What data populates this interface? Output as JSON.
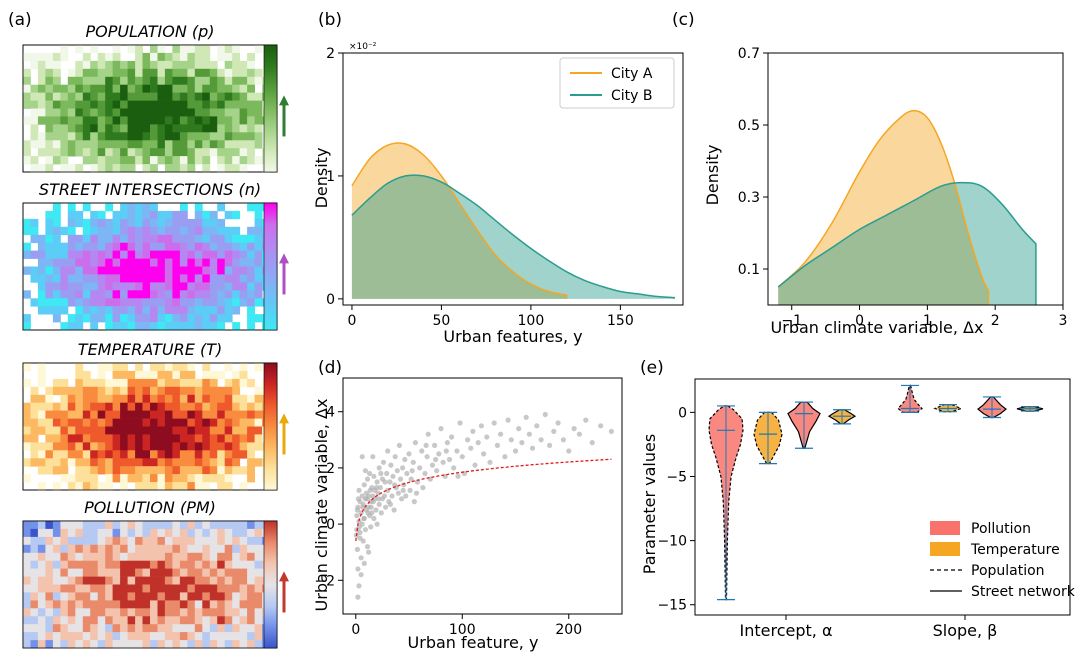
{
  "panel_labels": [
    "(a)",
    "(b)",
    "(c)",
    "(d)",
    "(e)"
  ],
  "colors": {
    "city_a": "#f5a623",
    "city_a_fill": "#fbd9a6",
    "city_b": "#2a9d8f",
    "city_b_fill": "#9fd3cc",
    "overlap_fill": "#c8c9a0",
    "pollution": "#f8736b",
    "temperature": "#f5a623",
    "scatter": "#b0b0b0",
    "fit": "#e31a1c",
    "whisker": "#1f77b4"
  },
  "chart_data": [
    {
      "id": "a",
      "type": "heatmap",
      "maps": [
        {
          "title": "POPULATION (p)",
          "palette": "greens",
          "arrow_color": "#2e7d32"
        },
        {
          "title": "STREET INTERSECTIONS (n)",
          "palette": "cool",
          "arrow_color": "#b04fc4"
        },
        {
          "title": "TEMPERATURE (T)",
          "palette": "ylorrd",
          "arrow_color": "#e8a90c"
        },
        {
          "title": "POLLUTION (PM)",
          "palette": "coolwarm",
          "arrow_color": "#c0392b"
        }
      ]
    },
    {
      "id": "b",
      "type": "area",
      "xlabel": "Urban features, y",
      "ylabel": "Density",
      "y_scale_note": "×10⁻²",
      "xlim": [
        -5,
        185
      ],
      "ylim": [
        -0.05,
        2.0
      ],
      "x_ticks": [
        "0",
        "50",
        "100",
        "150"
      ],
      "x_tick_values": [
        0,
        50,
        100,
        150
      ],
      "y_ticks": [
        "0",
        "1",
        "2"
      ],
      "y_tick_values": [
        0,
        1,
        2
      ],
      "legend": [
        "City A",
        "City B"
      ],
      "series": [
        {
          "name": "City A",
          "x": [
            0,
            10,
            20,
            30,
            40,
            50,
            60,
            70,
            80,
            90,
            100,
            110,
            120
          ],
          "y": [
            0.92,
            1.14,
            1.25,
            1.26,
            1.17,
            1.0,
            0.78,
            0.56,
            0.36,
            0.22,
            0.12,
            0.06,
            0.03
          ]
        },
        {
          "name": "City B",
          "x": [
            0,
            10,
            20,
            30,
            40,
            50,
            60,
            70,
            80,
            90,
            100,
            110,
            120,
            130,
            140,
            150,
            160,
            170,
            180
          ],
          "y": [
            0.68,
            0.82,
            0.94,
            1.0,
            1.0,
            0.95,
            0.86,
            0.76,
            0.64,
            0.52,
            0.41,
            0.31,
            0.22,
            0.15,
            0.1,
            0.06,
            0.04,
            0.02,
            0.01
          ]
        }
      ]
    },
    {
      "id": "c",
      "type": "area",
      "xlabel": "Urban climate variable, Δx",
      "ylabel": "Density",
      "xlim": [
        -1.35,
        3.0
      ],
      "ylim": [
        0.0,
        0.7
      ],
      "x_ticks": [
        "−1",
        "0",
        "1",
        "2",
        "3"
      ],
      "x_tick_values": [
        -1,
        0,
        1,
        2,
        3
      ],
      "y_ticks": [
        "0.1",
        "0.3",
        "0.5",
        "0.7"
      ],
      "y_tick_values": [
        0.1,
        0.3,
        0.5,
        0.7
      ],
      "series": [
        {
          "name": "City A",
          "x": [
            -1.2,
            -0.8,
            -0.4,
            0.0,
            0.3,
            0.6,
            0.8,
            1.0,
            1.2,
            1.4,
            1.6,
            1.8,
            1.9
          ],
          "y": [
            0.05,
            0.12,
            0.23,
            0.37,
            0.46,
            0.52,
            0.54,
            0.52,
            0.45,
            0.34,
            0.2,
            0.08,
            0.04
          ]
        },
        {
          "name": "City B",
          "x": [
            -1.2,
            -0.8,
            -0.4,
            0.0,
            0.4,
            0.8,
            1.2,
            1.5,
            1.8,
            2.1,
            2.4,
            2.6
          ],
          "y": [
            0.05,
            0.11,
            0.16,
            0.21,
            0.25,
            0.29,
            0.33,
            0.34,
            0.33,
            0.28,
            0.21,
            0.17
          ]
        }
      ]
    },
    {
      "id": "d",
      "type": "scatter",
      "xlabel": "Urban feature, y",
      "ylabel": "Urban climate variable, Δx",
      "xlim": [
        -12,
        250
      ],
      "ylim": [
        -3.2,
        5.2
      ],
      "x_ticks": [
        "0",
        "100",
        "200"
      ],
      "x_tick_values": [
        0,
        100,
        200
      ],
      "y_ticks": [
        "−2",
        "0",
        "2",
        "4"
      ],
      "y_tick_values": [
        -2,
        0,
        2,
        4
      ],
      "fit": {
        "form": "Δx = -0.6 + 0.53·ln(y+1)",
        "x_range": [
          0,
          240
        ]
      },
      "points": [
        [
          0.5,
          -0.4
        ],
        [
          1,
          0.3
        ],
        [
          1.5,
          -0.9
        ],
        [
          2,
          0.6
        ],
        [
          2,
          -1.6
        ],
        [
          3,
          0.1
        ],
        [
          3,
          1.2
        ],
        [
          4,
          -0.3
        ],
        [
          4,
          0.8
        ],
        [
          5,
          0.4
        ],
        [
          5,
          -1.2
        ],
        [
          6,
          1.0
        ],
        [
          6,
          0.0
        ],
        [
          7,
          0.7
        ],
        [
          7,
          -0.6
        ],
        [
          8,
          1.4
        ],
        [
          8,
          0.2
        ],
        [
          9,
          0.9
        ],
        [
          9,
          -0.2
        ],
        [
          10,
          1.1
        ],
        [
          10,
          0.5
        ],
        [
          11,
          -0.8
        ],
        [
          11,
          1.6
        ],
        [
          12,
          0.6
        ],
        [
          12,
          1.0
        ],
        [
          13,
          0.3
        ],
        [
          13,
          1.8
        ],
        [
          14,
          0.8
        ],
        [
          14,
          -0.1
        ],
        [
          15,
          1.3
        ],
        [
          15,
          0.4
        ],
        [
          16,
          1.0
        ],
        [
          17,
          0.2
        ],
        [
          17,
          1.7
        ],
        [
          18,
          0.9
        ],
        [
          18,
          1.2
        ],
        [
          19,
          0.5
        ],
        [
          20,
          1.5
        ],
        [
          20,
          0.0
        ],
        [
          21,
          1.1
        ],
        [
          22,
          2.0
        ],
        [
          22,
          0.7
        ],
        [
          23,
          1.3
        ],
        [
          24,
          0.4
        ],
        [
          25,
          1.6
        ],
        [
          25,
          0.9
        ],
        [
          26,
          2.2
        ],
        [
          27,
          1.0
        ],
        [
          28,
          0.6
        ],
        [
          29,
          1.8
        ],
        [
          30,
          1.2
        ],
        [
          30,
          2.6
        ],
        [
          31,
          0.8
        ],
        [
          32,
          1.5
        ],
        [
          33,
          2.1
        ],
        [
          34,
          1.0
        ],
        [
          35,
          1.7
        ],
        [
          36,
          0.5
        ],
        [
          37,
          2.4
        ],
        [
          38,
          1.3
        ],
        [
          39,
          1.9
        ],
        [
          40,
          1.1
        ],
        [
          41,
          2.8
        ],
        [
          42,
          1.6
        ],
        [
          43,
          0.9
        ],
        [
          44,
          2.0
        ],
        [
          45,
          1.4
        ],
        [
          46,
          2.3
        ],
        [
          47,
          1.0
        ],
        [
          48,
          1.8
        ],
        [
          50,
          2.5
        ],
        [
          51,
          1.2
        ],
        [
          52,
          1.6
        ],
        [
          54,
          2.2
        ],
        [
          55,
          0.8
        ],
        [
          56,
          2.9
        ],
        [
          58,
          1.5
        ],
        [
          60,
          2.0
        ],
        [
          62,
          2.6
        ],
        [
          63,
          1.3
        ],
        [
          65,
          1.8
        ],
        [
          67,
          2.4
        ],
        [
          68,
          3.2
        ],
        [
          70,
          1.6
        ],
        [
          72,
          2.1
        ],
        [
          74,
          2.8
        ],
        [
          76,
          1.9
        ],
        [
          78,
          2.5
        ],
        [
          80,
          3.4
        ],
        [
          82,
          2.2
        ],
        [
          84,
          1.7
        ],
        [
          86,
          2.9
        ],
        [
          88,
          2.3
        ],
        [
          90,
          3.1
        ],
        [
          92,
          2.0
        ],
        [
          95,
          2.6
        ],
        [
          98,
          3.6
        ],
        [
          100,
          2.4
        ],
        [
          102,
          1.8
        ],
        [
          105,
          3.0
        ],
        [
          108,
          2.7
        ],
        [
          110,
          3.3
        ],
        [
          112,
          2.1
        ],
        [
          115,
          2.9
        ],
        [
          118,
          3.5
        ],
        [
          120,
          2.5
        ],
        [
          123,
          3.1
        ],
        [
          126,
          2.2
        ],
        [
          130,
          3.6
        ],
        [
          133,
          2.8
        ],
        [
          136,
          3.2
        ],
        [
          140,
          2.4
        ],
        [
          143,
          3.7
        ],
        [
          146,
          3.0
        ],
        [
          150,
          2.6
        ],
        [
          153,
          3.4
        ],
        [
          156,
          2.9
        ],
        [
          160,
          3.8
        ],
        [
          163,
          3.2
        ],
        [
          166,
          2.7
        ],
        [
          170,
          3.5
        ],
        [
          174,
          3.0
        ],
        [
          178,
          3.9
        ],
        [
          182,
          2.8
        ],
        [
          186,
          3.3
        ],
        [
          190,
          3.6
        ],
        [
          195,
          3.0
        ],
        [
          200,
          2.6
        ],
        [
          205,
          3.4
        ],
        [
          210,
          3.2
        ],
        [
          216,
          3.7
        ],
        [
          222,
          2.9
        ],
        [
          230,
          3.5
        ],
        [
          240,
          3.3
        ],
        [
          3,
          -2.2
        ],
        [
          5,
          -1.8
        ],
        [
          2,
          -2.6
        ],
        [
          8,
          -1.4
        ],
        [
          12,
          -1.0
        ],
        [
          4,
          -0.5
        ],
        [
          6,
          2.4
        ],
        [
          9,
          1.9
        ],
        [
          16,
          2.4
        ],
        [
          1,
          -0.2
        ],
        [
          2.5,
          0.9
        ],
        [
          3.5,
          -0.1
        ],
        [
          1.5,
          0.5
        ],
        [
          6.5,
          0.6
        ],
        [
          7.5,
          0.2
        ],
        [
          10.5,
          0.9
        ],
        [
          11.5,
          0.4
        ],
        [
          13.5,
          1.2
        ],
        [
          14.5,
          0.6
        ],
        [
          16.5,
          0.8
        ],
        [
          19.5,
          1.3
        ],
        [
          21.5,
          0.9
        ],
        [
          23.5,
          1.8
        ],
        [
          27.5,
          1.5
        ],
        [
          32.5,
          0.7
        ],
        [
          36.5,
          1.4
        ],
        [
          44.5,
          1.2
        ],
        [
          53,
          1.9
        ],
        [
          57,
          1.1
        ],
        [
          66,
          2.8
        ],
        [
          75,
          2.3
        ],
        [
          85,
          2.6
        ],
        [
          96,
          1.7
        ]
      ]
    },
    {
      "id": "e",
      "type": "violin",
      "ylabel": "Parameter values",
      "ylim": [
        -15.8,
        2.6
      ],
      "y_ticks": [
        "−15",
        "−10",
        "−5",
        "0"
      ],
      "y_tick_values": [
        -15,
        -10,
        -5,
        0
      ],
      "x_groups": [
        "Intercept, α",
        "Slope, β"
      ],
      "legend": [
        "Pollution",
        "Temperature",
        "Population",
        "Street network"
      ],
      "violins": [
        {
          "group": "Intercept, α",
          "variable": "Pollution",
          "feature": "Population",
          "min": -14.6,
          "max": 0.5,
          "median": -1.4,
          "shape": [
            [
              0.5,
              0.1
            ],
            [
              0.2,
              0.45
            ],
            [
              -0.5,
              0.95
            ],
            [
              -1.4,
              1.0
            ],
            [
              -2.5,
              0.85
            ],
            [
              -3.5,
              0.6
            ],
            [
              -5.0,
              0.3
            ],
            [
              -7.0,
              0.16
            ],
            [
              -10.0,
              0.08
            ],
            [
              -14.6,
              0.03
            ]
          ]
        },
        {
          "group": "Intercept, α",
          "variable": "Temperature",
          "feature": "Population",
          "min": -4.0,
          "max": 0.0,
          "median": -1.7,
          "shape": [
            [
              0.0,
              0.25
            ],
            [
              -0.6,
              0.75
            ],
            [
              -1.7,
              1.0
            ],
            [
              -2.6,
              0.8
            ],
            [
              -3.3,
              0.45
            ],
            [
              -4.0,
              0.1
            ]
          ]
        },
        {
          "group": "Intercept, α",
          "variable": "Pollution",
          "feature": "Street network",
          "min": -2.8,
          "max": 0.8,
          "median": -0.1,
          "shape": [
            [
              0.8,
              0.2
            ],
            [
              0.3,
              0.55
            ],
            [
              -0.1,
              1.0
            ],
            [
              -0.7,
              0.75
            ],
            [
              -1.5,
              0.35
            ],
            [
              -2.8,
              0.05
            ]
          ]
        },
        {
          "group": "Intercept, α",
          "variable": "Temperature",
          "feature": "Street network",
          "min": -0.9,
          "max": 0.2,
          "median": -0.3,
          "shape": [
            [
              0.2,
              0.2
            ],
            [
              -0.1,
              0.7
            ],
            [
              -0.3,
              1.0
            ],
            [
              -0.6,
              0.5
            ],
            [
              -0.9,
              0.1
            ]
          ]
        },
        {
          "group": "Slope, β",
          "variable": "Pollution",
          "feature": "Population",
          "min": 0.0,
          "max": 2.1,
          "median": 0.3,
          "shape": [
            [
              2.1,
              0.05
            ],
            [
              1.5,
              0.2
            ],
            [
              1.0,
              0.35
            ],
            [
              0.6,
              0.7
            ],
            [
              0.3,
              1.0
            ],
            [
              0.0,
              0.6
            ]
          ]
        },
        {
          "group": "Slope, β",
          "variable": "Temperature",
          "feature": "Population",
          "min": 0.05,
          "max": 0.6,
          "median": 0.3,
          "shape": [
            [
              0.6,
              0.3
            ],
            [
              0.3,
              1.0
            ],
            [
              0.05,
              0.3
            ]
          ]
        },
        {
          "group": "Slope, β",
          "variable": "Pollution",
          "feature": "Street network",
          "min": -0.4,
          "max": 1.2,
          "median": 0.25,
          "shape": [
            [
              1.2,
              0.1
            ],
            [
              0.6,
              0.6
            ],
            [
              0.25,
              1.0
            ],
            [
              -0.1,
              0.6
            ],
            [
              -0.4,
              0.1
            ]
          ]
        },
        {
          "group": "Slope, β",
          "variable": "Temperature",
          "feature": "Street network",
          "min": 0.1,
          "max": 0.45,
          "median": 0.28,
          "shape": [
            [
              0.45,
              0.3
            ],
            [
              0.28,
              1.0
            ],
            [
              0.1,
              0.3
            ]
          ]
        }
      ]
    }
  ]
}
